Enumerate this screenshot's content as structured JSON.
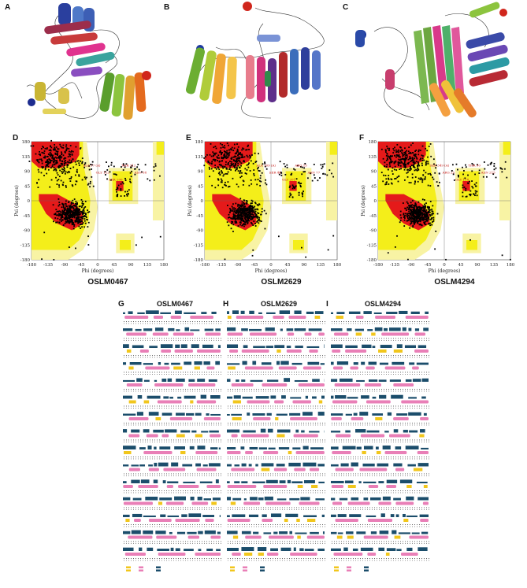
{
  "figure": {
    "panels_top": [
      {
        "letter": "A"
      },
      {
        "letter": "B"
      },
      {
        "letter": "C"
      }
    ],
    "panels_mid": [
      {
        "letter": "D",
        "caption": "OSLM0467"
      },
      {
        "letter": "E",
        "caption": "OSLM2629"
      },
      {
        "letter": "F",
        "caption": "OSLM4294"
      }
    ],
    "panels_bottom": [
      {
        "letter": "G",
        "title": "OSLM0467"
      },
      {
        "letter": "H",
        "title": "OSLM2629"
      },
      {
        "letter": "I",
        "title": "OSLM4294"
      }
    ]
  },
  "ramachandran": {
    "xlabel": "Phi (degrees)",
    "ylabel": "Psi (degrees)",
    "ticks": [
      "-180",
      "-135",
      "-90",
      "-45",
      "0",
      "45",
      "90",
      "135",
      "180"
    ],
    "outliers": {
      "D": [
        "ALA 57 (A)",
        "GLY 112",
        "SER 206",
        "THR 312",
        "ASN 88"
      ],
      "E": [
        "ALA 109 (A)",
        "SER 44",
        "GLY 201",
        "ARG 15",
        "ASN 77"
      ],
      "F": [
        "SER 349 (A)",
        "ARG 25",
        "GLY 118",
        "THR 90",
        "ASN 215"
      ]
    }
  },
  "colors": {
    "core": "#e51a1a",
    "allowed": "#f4ee1a",
    "generous": "#f8f3a4",
    "disallowed": "#ffffff",
    "helix": "#e97fb7",
    "strand": "#f1c61c",
    "surface": "#1b4d6b"
  }
}
